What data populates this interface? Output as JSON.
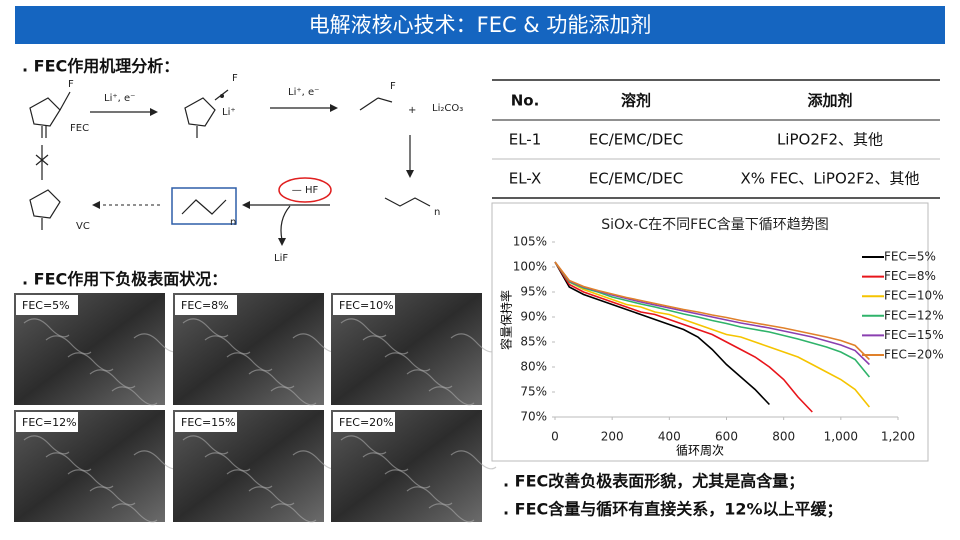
{
  "header": {
    "title": "电解液核心技术：FEC & 功能添加剂"
  },
  "mechanism": {
    "heading": ". FEC作用机理分析：",
    "labels": {
      "fec": "FEC",
      "step1": "Li⁺, e⁻",
      "step2": "Li⁺, e⁻",
      "li_salt": "Li⁺",
      "li2co3": "Li₂CO₃",
      "plus": "+",
      "vc": "VC",
      "hf": "— HF",
      "lif": "LiF",
      "n1": "n",
      "n2": "n",
      "f1": "F",
      "f2": "F",
      "f3": "F"
    }
  },
  "surface": {
    "heading": ". FEC作用下负极表面状况：",
    "images": [
      "FEC=5%",
      "FEC=8%",
      "FEC=10%",
      "FEC=12%",
      "FEC=15%",
      "FEC=20%"
    ]
  },
  "table": {
    "header": [
      "No.",
      "溶剂",
      "添加剂"
    ],
    "rows": [
      [
        "EL-1",
        "EC/EMC/DEC",
        "LiPO2F2、其他"
      ],
      [
        "EL-X",
        "EC/EMC/DEC",
        "X% FEC、LiPO2F2、其他"
      ]
    ]
  },
  "chart_data": {
    "type": "line",
    "title": "SiOx-C在不同FEC含量下循环趋势图",
    "y_label": "容量保持率",
    "x_label": "循环周次",
    "x": [
      0,
      50,
      100,
      150,
      200,
      250,
      300,
      350,
      400,
      450,
      500,
      550,
      600,
      650,
      700,
      750,
      800,
      850,
      900,
      950,
      1000,
      1050,
      1100
    ],
    "xlim": [
      0,
      1200
    ],
    "xticks": [
      0,
      200,
      400,
      600,
      800,
      {
        "value": 1000,
        "label": "1,000"
      },
      {
        "value": 1200,
        "label": "1,200"
      }
    ],
    "ylim": [
      70,
      105
    ],
    "yticks": [
      {
        "value": 70,
        "label": "70%"
      },
      {
        "value": 75,
        "label": "75%"
      },
      {
        "value": 80,
        "label": "80%"
      },
      {
        "value": 85,
        "label": "85%"
      },
      {
        "value": 90,
        "label": "90%"
      },
      {
        "value": 95,
        "label": "95%"
      },
      {
        "value": 100,
        "label": "100%"
      },
      {
        "value": 105,
        "label": "105%"
      }
    ],
    "legend": "upper right",
    "series": [
      {
        "name": "FEC=5%",
        "color": "#000000",
        "values": [
          101,
          96,
          94.5,
          93.5,
          92.5,
          91.5,
          90.5,
          89.5,
          88.5,
          87.5,
          86,
          83.5,
          80.5,
          78,
          75.5,
          72.5,
          null,
          null,
          null,
          null,
          null,
          null,
          null
        ]
      },
      {
        "name": "FEC=8%",
        "color": "#e8151b",
        "values": [
          101,
          96.5,
          95,
          94,
          93,
          92,
          91,
          90.5,
          89.5,
          88.5,
          87.5,
          86.5,
          85,
          83.5,
          82,
          80,
          77.5,
          74,
          71,
          null,
          null,
          null,
          null
        ]
      },
      {
        "name": "FEC=10%",
        "color": "#f5c400",
        "values": [
          101,
          97,
          95.5,
          94.5,
          93.5,
          92.5,
          92,
          91,
          90.5,
          89.5,
          88.5,
          87.5,
          86.5,
          86,
          85,
          84,
          83,
          82,
          80.5,
          79,
          77.5,
          75.5,
          72
        ]
      },
      {
        "name": "FEC=12%",
        "color": "#2fb36a",
        "values": [
          101,
          97,
          95.8,
          95,
          94,
          93.3,
          92.6,
          92,
          91.3,
          90.6,
          90,
          89.3,
          88.7,
          88,
          87.5,
          87,
          86.3,
          85.6,
          84.8,
          84,
          83,
          81.5,
          78
        ]
      },
      {
        "name": "FEC=15%",
        "color": "#8a3fb0",
        "values": [
          101,
          97.2,
          96,
          95.2,
          94.4,
          93.7,
          93,
          92.4,
          91.8,
          91.2,
          90.6,
          90,
          89.4,
          88.8,
          88.3,
          87.8,
          87.2,
          86.6,
          86,
          85.2,
          84.4,
          83.3,
          80.5
        ]
      },
      {
        "name": "FEC=20%",
        "color": "#e0812a",
        "values": [
          101,
          97.3,
          96.1,
          95.3,
          94.6,
          93.9,
          93.3,
          92.7,
          92.1,
          91.5,
          91,
          90.4,
          89.9,
          89.3,
          88.8,
          88.3,
          87.8,
          87.2,
          86.6,
          86,
          85.3,
          84.3,
          81.5
        ]
      }
    ]
  },
  "conclusions": [
    ". FEC改善负极表面形貌，尤其是高含量；",
    ". FEC含量与循环有直接关系，12%以上平缓；"
  ]
}
